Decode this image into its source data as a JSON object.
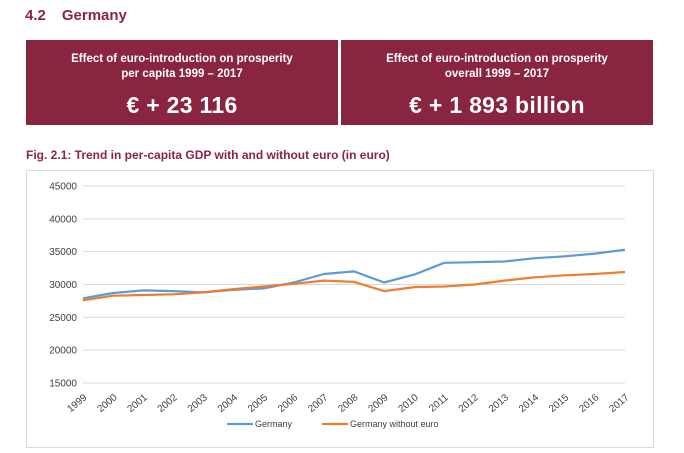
{
  "section": {
    "number": "4.2",
    "title": "Germany"
  },
  "kpis": [
    {
      "label_line1": "Effect of euro-introduction on prosperity",
      "label_line2": "per capita 1999 – 2017",
      "value": "€ + 23 116"
    },
    {
      "label_line1": "Effect of euro-introduction on prosperity",
      "label_line2": "overall 1999 – 2017",
      "value": "€ + 1 893 billion"
    }
  ],
  "figure": {
    "caption": "Fig. 2.1: Trend in per-capita GDP with and without euro (in euro)"
  },
  "colors": {
    "accent": "#8a2540",
    "germany": "#5b9bd5",
    "without_euro": "#ed7d31",
    "grid": "#d9d9d9"
  },
  "chart_data": {
    "type": "line",
    "title": "Trend in per-capita GDP with and without euro (in euro)",
    "xlabel": "",
    "ylabel": "",
    "ylim": [
      15000,
      45000
    ],
    "yticks": [
      15000,
      20000,
      25000,
      30000,
      35000,
      40000,
      45000
    ],
    "grid": true,
    "legend": "bottom-center",
    "categories": [
      "1999",
      "2000",
      "2001",
      "2002",
      "2003",
      "2004",
      "2005",
      "2006",
      "2007",
      "2008",
      "2009",
      "2010",
      "2011",
      "2012",
      "2013",
      "2014",
      "2015",
      "2016",
      "2017"
    ],
    "series": [
      {
        "name": "Germany",
        "values": [
          27900,
          28700,
          29100,
          29000,
          28800,
          29200,
          29400,
          30300,
          31600,
          32000,
          30300,
          31500,
          33300,
          33400,
          33500,
          34000,
          34300,
          34700,
          35300
        ]
      },
      {
        "name": "Germany without euro",
        "values": [
          27600,
          28300,
          28400,
          28500,
          28800,
          29300,
          29700,
          30100,
          30600,
          30400,
          29000,
          29600,
          29700,
          30000,
          30600,
          31100,
          31400,
          31600,
          31900
        ]
      }
    ]
  }
}
